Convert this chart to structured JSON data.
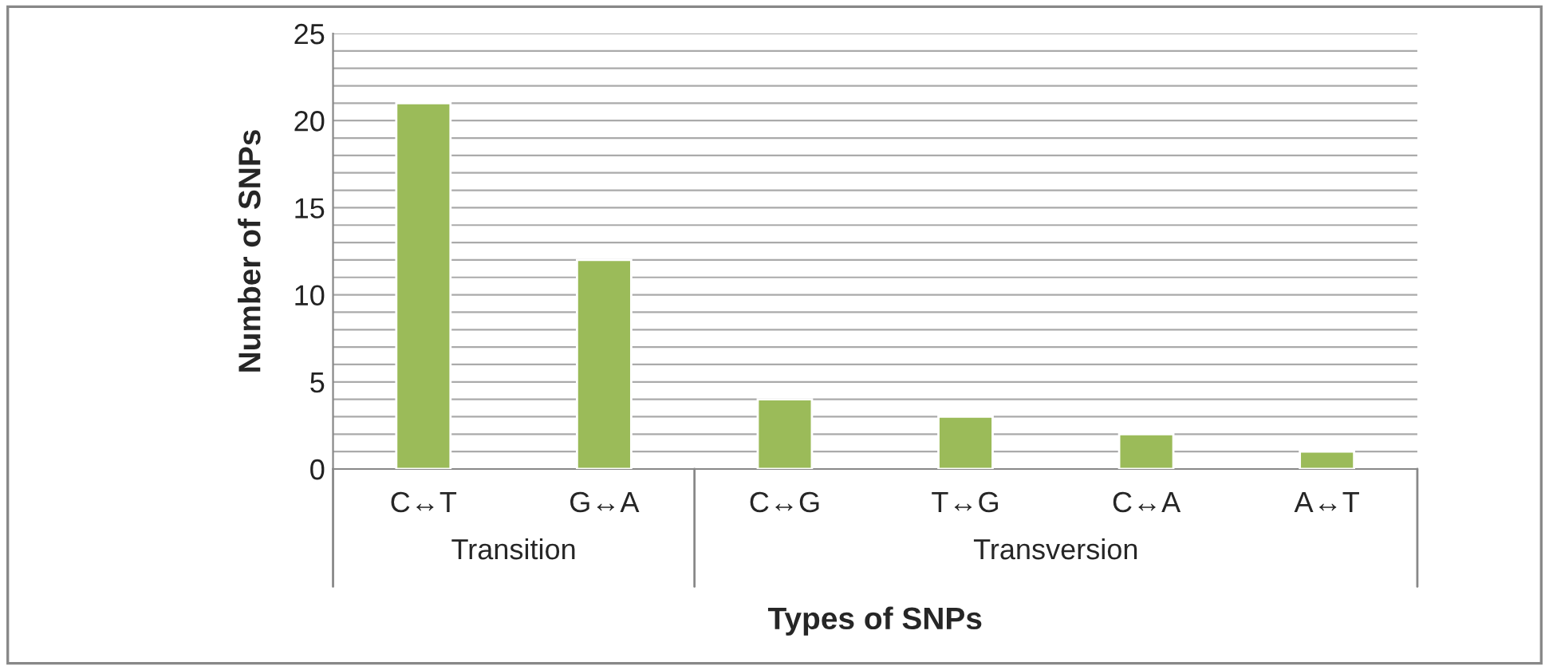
{
  "chart_data": {
    "type": "bar",
    "xlabel": "Types of SNPs",
    "ylabel": "Number of SNPs",
    "categories": [
      "C↔T",
      "G↔A",
      "C↔G",
      "T↔G",
      "C↔A",
      "A↔T"
    ],
    "values": [
      21,
      12,
      4,
      3,
      2,
      1
    ],
    "color": "#9bbb59",
    "ylim": [
      0,
      25
    ],
    "yticks": [
      0,
      {
        "value": 1,
        "label": null
      },
      {
        "value": 2,
        "label": null
      },
      {
        "value": 3,
        "label": null
      },
      {
        "value": 4,
        "label": null
      },
      5,
      {
        "value": 6,
        "label": null
      },
      {
        "value": 7,
        "label": null
      },
      {
        "value": 8,
        "label": null
      },
      {
        "value": 9,
        "label": null
      },
      10,
      {
        "value": 11,
        "label": null
      },
      {
        "value": 12,
        "label": null
      },
      {
        "value": 13,
        "label": null
      },
      {
        "value": 14,
        "label": null
      },
      15,
      {
        "value": 16,
        "label": null
      },
      {
        "value": 17,
        "label": null
      },
      {
        "value": 18,
        "label": null
      },
      {
        "value": 19,
        "label": null
      },
      20,
      {
        "value": 21,
        "label": null
      },
      {
        "value": 22,
        "label": null
      },
      {
        "value": 23,
        "label": null
      },
      {
        "value": 24,
        "label": null
      },
      25
    ],
    "grid": "y",
    "annotations": [
      "Transition",
      "Transversion"
    ]
  }
}
